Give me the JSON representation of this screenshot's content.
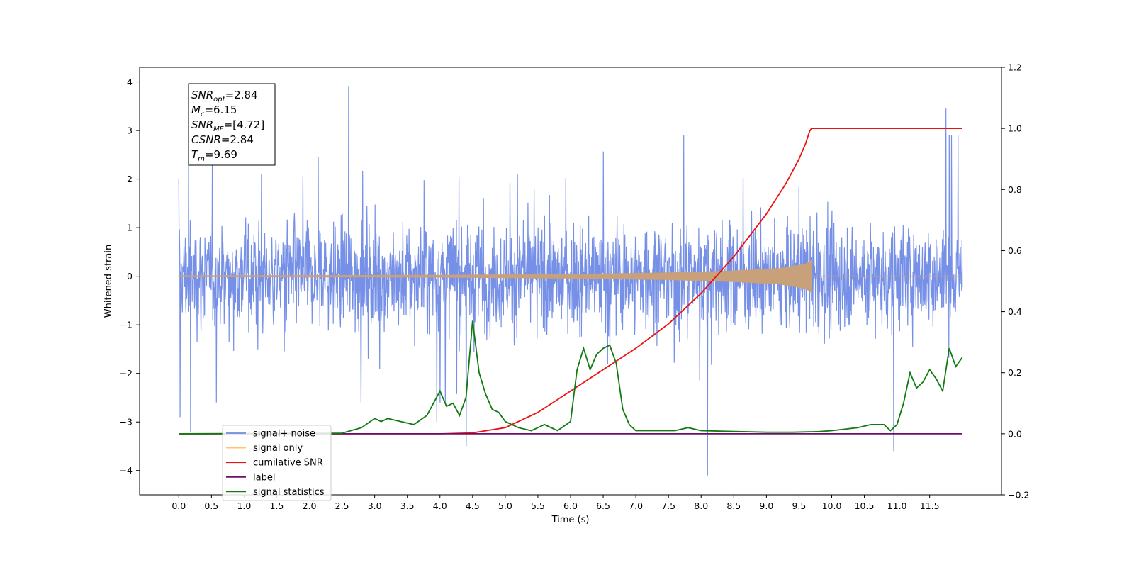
{
  "chart_data": {
    "type": "line",
    "xlabel": "Time (s)",
    "ylabel": "Whitened strain",
    "xlim": [
      -0.6,
      12.6
    ],
    "ylim": [
      -4.5,
      4.3
    ],
    "y2lim": [
      -0.2,
      1.2
    ],
    "x_ticks": [
      "0.0",
      "0.5",
      "1.0",
      "1.5",
      "2.0",
      "2.5",
      "3.0",
      "3.5",
      "4.0",
      "4.5",
      "5.0",
      "5.5",
      "6.0",
      "6.5",
      "7.0",
      "7.5",
      "8.0",
      "8.5",
      "9.0",
      "9.5",
      "10.0",
      "10.5",
      "11.0",
      "11.5"
    ],
    "y_ticks": [
      "4",
      "3",
      "2",
      "1",
      "0",
      "−1",
      "−2",
      "−3",
      "−4"
    ],
    "y2_ticks": [
      "1.2",
      "1.0",
      "0.8",
      "0.6",
      "0.4",
      "0.2",
      "0.0",
      "−0.2"
    ],
    "legend_position": "lower-left",
    "legend": [
      {
        "label": "signal+ noise",
        "color": "#6f8ae6"
      },
      {
        "label": "signal only",
        "color": "#ffc56e"
      },
      {
        "label": "cumilative SNR",
        "color": "#ee1111"
      },
      {
        "label": "label",
        "color": "#6b0f6b"
      },
      {
        "label": "signal statistics",
        "color": "#117a11"
      }
    ],
    "annotation": {
      "lines": [
        {
          "base": "SNR",
          "sub": "opt",
          "value": "=2.84"
        },
        {
          "base": "M",
          "sub": "c",
          "value": "=6.15"
        },
        {
          "base": "SNR",
          "sub": "MF",
          "value": "=[4.72]"
        },
        {
          "base": "CSNR",
          "sub": "",
          "value": "=2.84"
        },
        {
          "base": "T",
          "sub": "m",
          "value": "=9.69"
        }
      ]
    },
    "series": [
      {
        "name": "signal+ noise",
        "color": "#6f8ae6",
        "x_range": [
          0.0,
          12.0
        ],
        "typical_range": [
          -1.7,
          1.9
        ],
        "spikes": [
          {
            "x": 0.0,
            "y": 2.0
          },
          {
            "x": 0.15,
            "y": 2.6
          },
          {
            "x": 0.02,
            "y": -2.9
          },
          {
            "x": 0.18,
            "y": -3.2
          },
          {
            "x": 2.6,
            "y": 3.9
          },
          {
            "x": 3.95,
            "y": -3.0
          },
          {
            "x": 4.4,
            "y": -3.5
          },
          {
            "x": 8.1,
            "y": -4.1
          },
          {
            "x": 10.95,
            "y": -3.6
          },
          {
            "x": 11.75,
            "y": 3.45
          },
          {
            "x": 11.8,
            "y": 2.9
          }
        ]
      },
      {
        "name": "signal only",
        "color": "#c8a07a",
        "envelope": [
          [
            0.0,
            0.01
          ],
          [
            4.0,
            0.02
          ],
          [
            6.0,
            0.04
          ],
          [
            7.5,
            0.07
          ],
          [
            8.5,
            0.11
          ],
          [
            9.2,
            0.16
          ],
          [
            9.6,
            0.25
          ],
          [
            9.69,
            0.33
          ]
        ],
        "end": 9.69
      },
      {
        "name": "cumilative SNR",
        "color": "#ee1111",
        "axis": "right",
        "x": [
          0.0,
          4.0,
          4.5,
          5.0,
          5.5,
          6.0,
          6.5,
          7.0,
          7.5,
          8.0,
          8.5,
          9.0,
          9.3,
          9.5,
          9.6,
          9.66,
          9.69,
          12.0
        ],
        "y": [
          0.0,
          0.0,
          0.003,
          0.02,
          0.07,
          0.14,
          0.21,
          0.28,
          0.36,
          0.46,
          0.58,
          0.72,
          0.82,
          0.9,
          0.95,
          0.99,
          1.0,
          1.0
        ]
      },
      {
        "name": "label",
        "color": "#6b0f6b",
        "axis": "right",
        "x": [
          0.0,
          12.0
        ],
        "y": [
          0.0,
          0.0
        ]
      },
      {
        "name": "signal statistics",
        "color": "#117a11",
        "axis": "right",
        "x": [
          0.0,
          2.5,
          2.8,
          3.0,
          3.1,
          3.2,
          3.4,
          3.6,
          3.8,
          4.0,
          4.1,
          4.2,
          4.3,
          4.4,
          4.5,
          4.6,
          4.7,
          4.8,
          4.9,
          5.0,
          5.2,
          5.4,
          5.6,
          5.8,
          6.0,
          6.1,
          6.2,
          6.3,
          6.4,
          6.5,
          6.6,
          6.7,
          6.8,
          6.9,
          7.0,
          7.2,
          7.6,
          7.8,
          8.0,
          8.4,
          9.0,
          9.4,
          9.8,
          10.0,
          10.2,
          10.4,
          10.6,
          10.8,
          10.9,
          11.0,
          11.1,
          11.2,
          11.3,
          11.4,
          11.5,
          11.6,
          11.7,
          11.8,
          11.9,
          12.0
        ],
        "y": [
          0.0,
          0.002,
          0.02,
          0.05,
          0.04,
          0.05,
          0.04,
          0.03,
          0.06,
          0.14,
          0.09,
          0.1,
          0.06,
          0.12,
          0.37,
          0.2,
          0.13,
          0.08,
          0.07,
          0.04,
          0.02,
          0.01,
          0.03,
          0.01,
          0.04,
          0.21,
          0.28,
          0.21,
          0.26,
          0.28,
          0.29,
          0.23,
          0.08,
          0.03,
          0.01,
          0.01,
          0.01,
          0.02,
          0.01,
          0.008,
          0.005,
          0.005,
          0.007,
          0.01,
          0.015,
          0.02,
          0.03,
          0.03,
          0.01,
          0.03,
          0.1,
          0.2,
          0.15,
          0.17,
          0.21,
          0.18,
          0.14,
          0.28,
          0.22,
          0.25
        ]
      }
    ]
  }
}
